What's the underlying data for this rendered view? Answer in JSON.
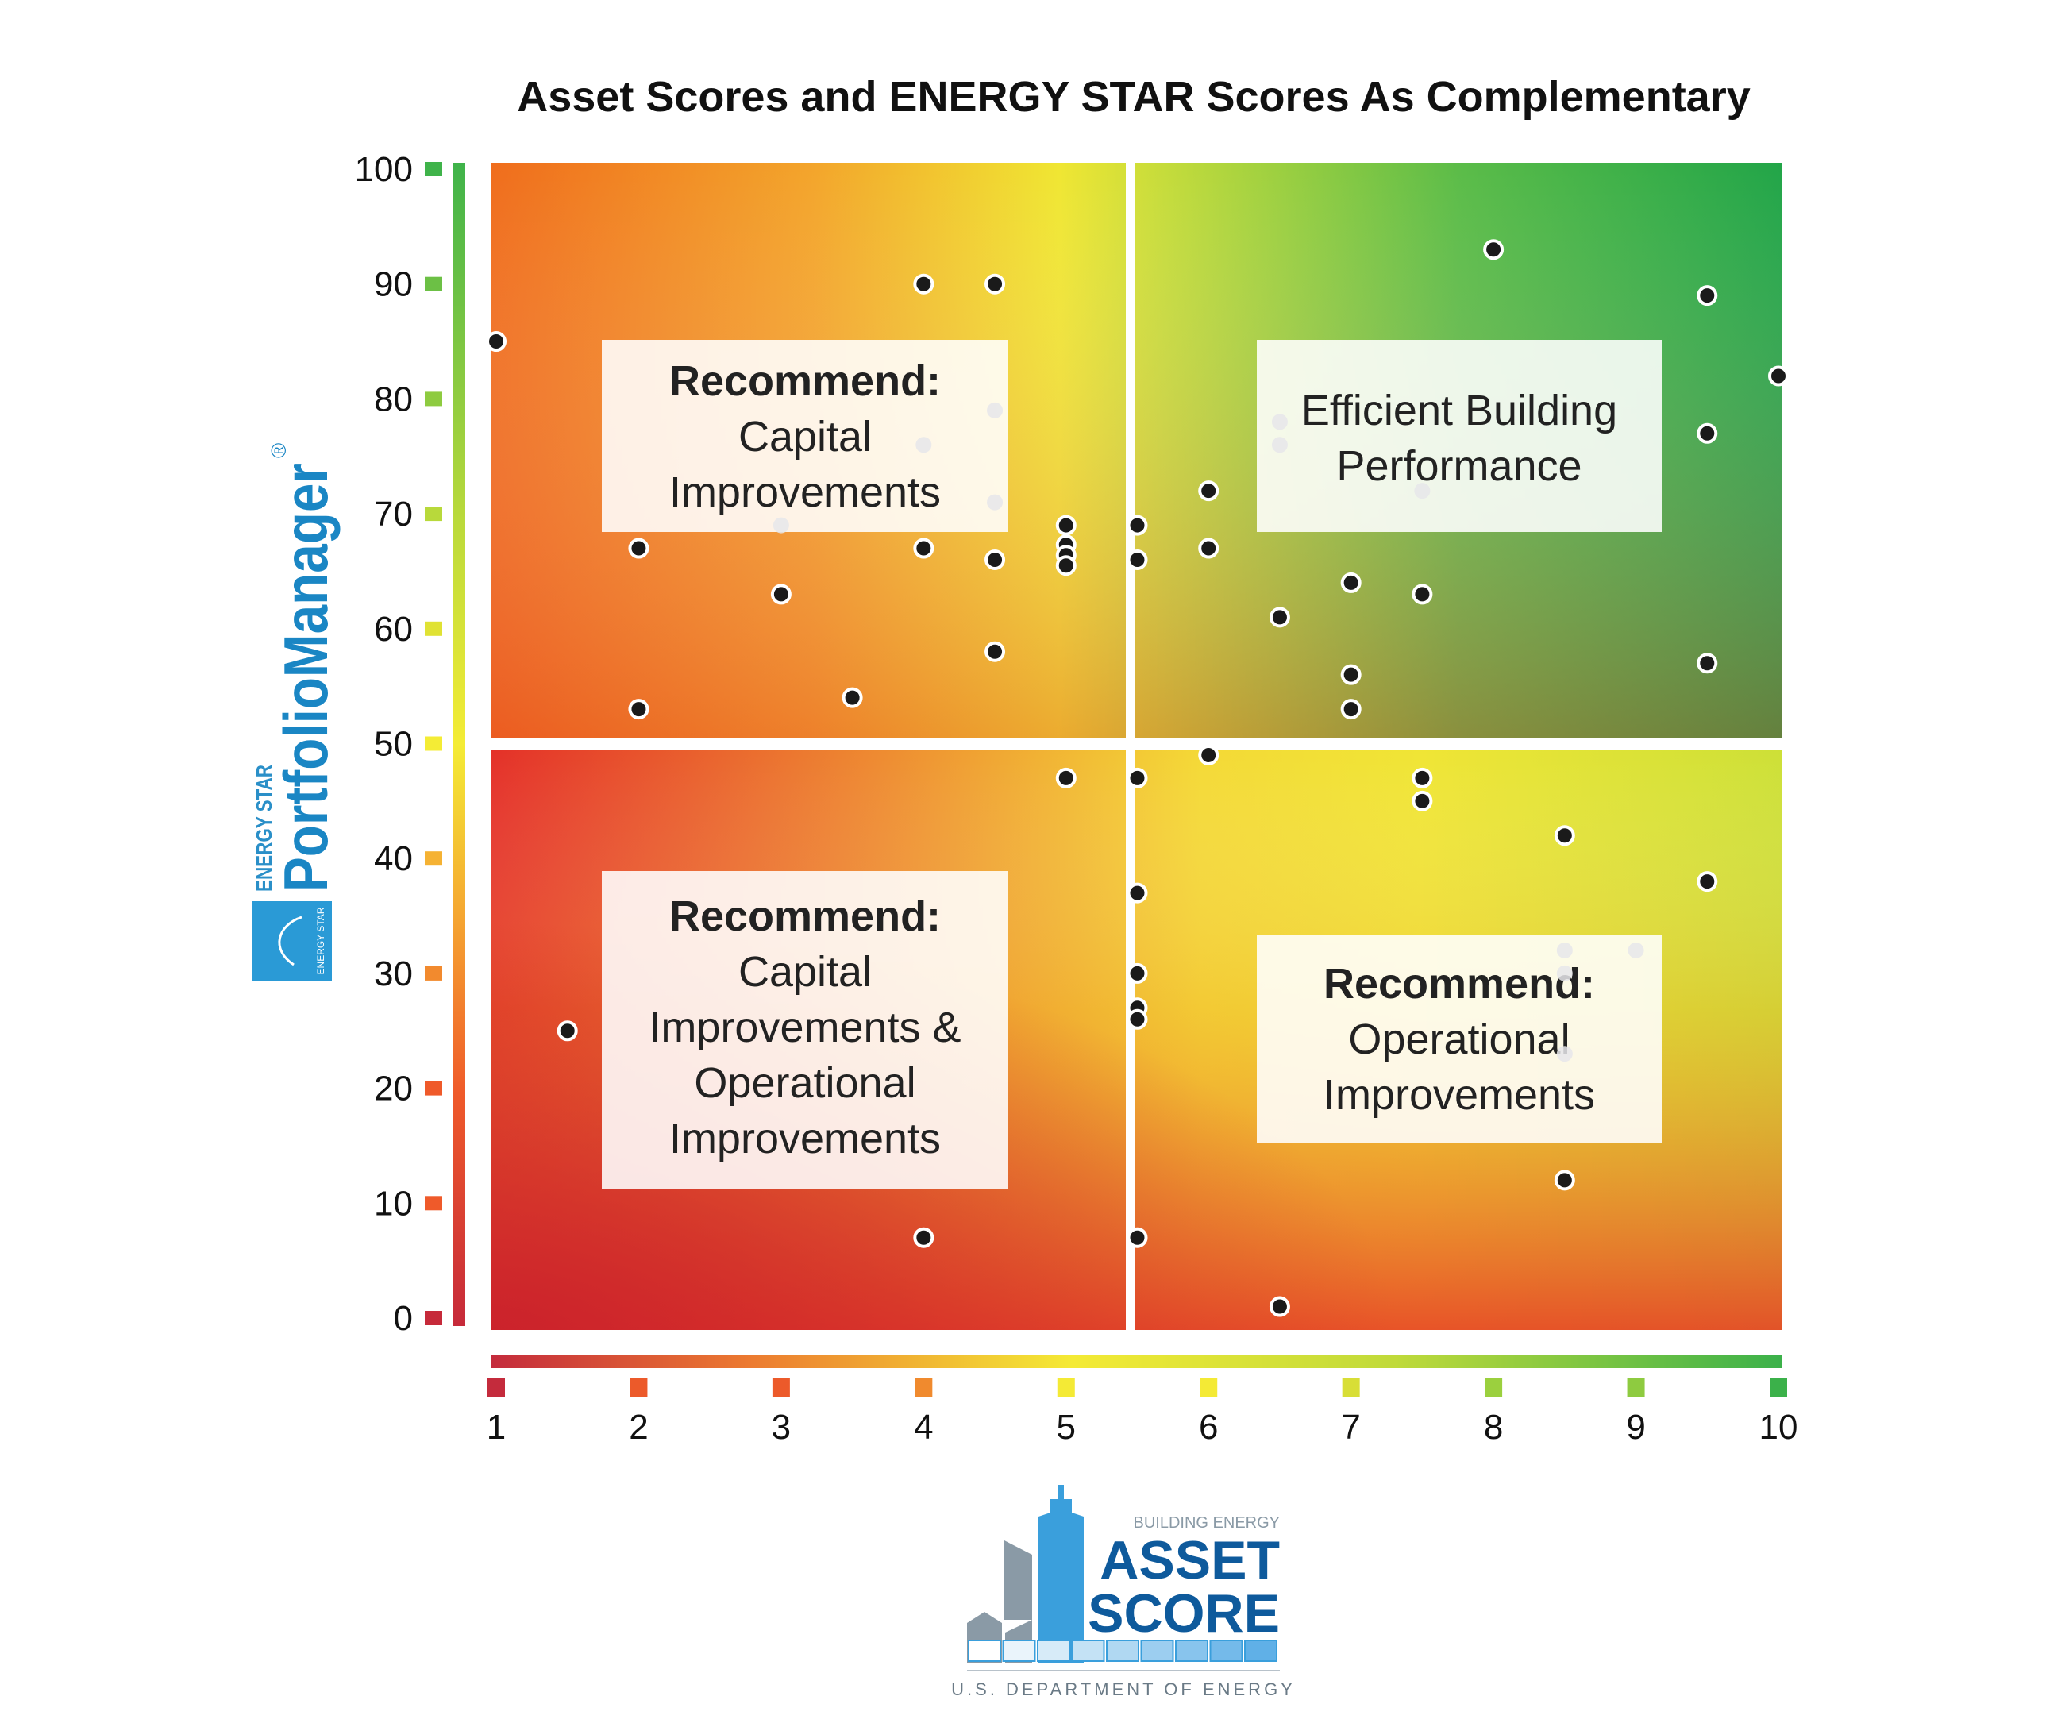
{
  "chart_data": {
    "type": "scatter",
    "title": "Asset Scores and ENERGY STAR Scores As Complementary",
    "xlim": [
      1,
      10
    ],
    "ylim": [
      0,
      100
    ],
    "x_ticks": [
      "1",
      "2",
      "3",
      "4",
      "5",
      "6",
      "7",
      "8",
      "9",
      "10"
    ],
    "y_ticks": [
      "0",
      "10",
      "20",
      "30",
      "40",
      "50",
      "60",
      "70",
      "80",
      "90",
      "100"
    ],
    "quadrant_split": {
      "x": 5.5,
      "y": 50
    },
    "quadrants": [
      {
        "bold": "Recommend:",
        "lines": [
          "Capital",
          "Improvements"
        ]
      },
      {
        "bold": "",
        "lines": [
          "Efficient Building",
          "Performance"
        ]
      },
      {
        "bold": "Recommend:",
        "lines": [
          "Capital",
          "Improvements &",
          "Operational",
          "Improvements"
        ]
      },
      {
        "bold": "Recommend:",
        "lines": [
          "Operational",
          "Improvements"
        ]
      }
    ],
    "points": [
      {
        "x": 1.0,
        "y": 85
      },
      {
        "x": 2.0,
        "y": 67
      },
      {
        "x": 2.0,
        "y": 53
      },
      {
        "x": 3.0,
        "y": 63
      },
      {
        "x": 3.5,
        "y": 54
      },
      {
        "x": 4.0,
        "y": 90
      },
      {
        "x": 4.5,
        "y": 90
      },
      {
        "x": 4.0,
        "y": 67
      },
      {
        "x": 4.5,
        "y": 66
      },
      {
        "x": 4.5,
        "y": 58
      },
      {
        "x": 5.0,
        "y": 69
      },
      {
        "x": 5.0,
        "y": 67.3
      },
      {
        "x": 5.0,
        "y": 66.4
      },
      {
        "x": 5.0,
        "y": 65.5
      },
      {
        "x": 5.5,
        "y": 69
      },
      {
        "x": 5.5,
        "y": 66
      },
      {
        "x": 6.0,
        "y": 72
      },
      {
        "x": 6.0,
        "y": 67
      },
      {
        "x": 6.5,
        "y": 61
      },
      {
        "x": 7.0,
        "y": 64
      },
      {
        "x": 7.0,
        "y": 56
      },
      {
        "x": 7.0,
        "y": 53
      },
      {
        "x": 7.5,
        "y": 63
      },
      {
        "x": 8.0,
        "y": 93
      },
      {
        "x": 9.5,
        "y": 89
      },
      {
        "x": 9.5,
        "y": 77
      },
      {
        "x": 9.5,
        "y": 57
      },
      {
        "x": 10.0,
        "y": 82
      },
      {
        "x": 1.5,
        "y": 25
      },
      {
        "x": 4.0,
        "y": 7
      },
      {
        "x": 5.0,
        "y": 47
      },
      {
        "x": 5.5,
        "y": 47
      },
      {
        "x": 5.5,
        "y": 37
      },
      {
        "x": 5.5,
        "y": 30
      },
      {
        "x": 5.5,
        "y": 27
      },
      {
        "x": 5.5,
        "y": 26
      },
      {
        "x": 5.5,
        "y": 7
      },
      {
        "x": 6.0,
        "y": 49
      },
      {
        "x": 6.5,
        "y": 1
      },
      {
        "x": 7.5,
        "y": 47
      },
      {
        "x": 7.5,
        "y": 45
      },
      {
        "x": 8.5,
        "y": 42
      },
      {
        "x": 8.5,
        "y": 12
      },
      {
        "x": 9.5,
        "y": 38
      }
    ],
    "faint_points": [
      {
        "x": 4.0,
        "y": 76
      },
      {
        "x": 4.5,
        "y": 79
      },
      {
        "x": 4.5,
        "y": 71
      },
      {
        "x": 3.0,
        "y": 69
      },
      {
        "x": 6.5,
        "y": 78
      },
      {
        "x": 6.5,
        "y": 76
      },
      {
        "x": 7.5,
        "y": 72
      },
      {
        "x": 8.5,
        "y": 32
      },
      {
        "x": 8.5,
        "y": 30
      },
      {
        "x": 8.5,
        "y": 23
      },
      {
        "x": 9.0,
        "y": 32
      }
    ]
  },
  "logos": {
    "portfolio_manager": {
      "brand": "ENERGY STAR",
      "name": "PortfolioManager",
      "reg": "®",
      "seal_text": "ENERGY STAR"
    },
    "asset_score": {
      "top": "BUILDING ENERGY",
      "line1": "ASSET",
      "line2": "SCORE",
      "org": "U.S. DEPARTMENT OF ENERGY"
    }
  }
}
